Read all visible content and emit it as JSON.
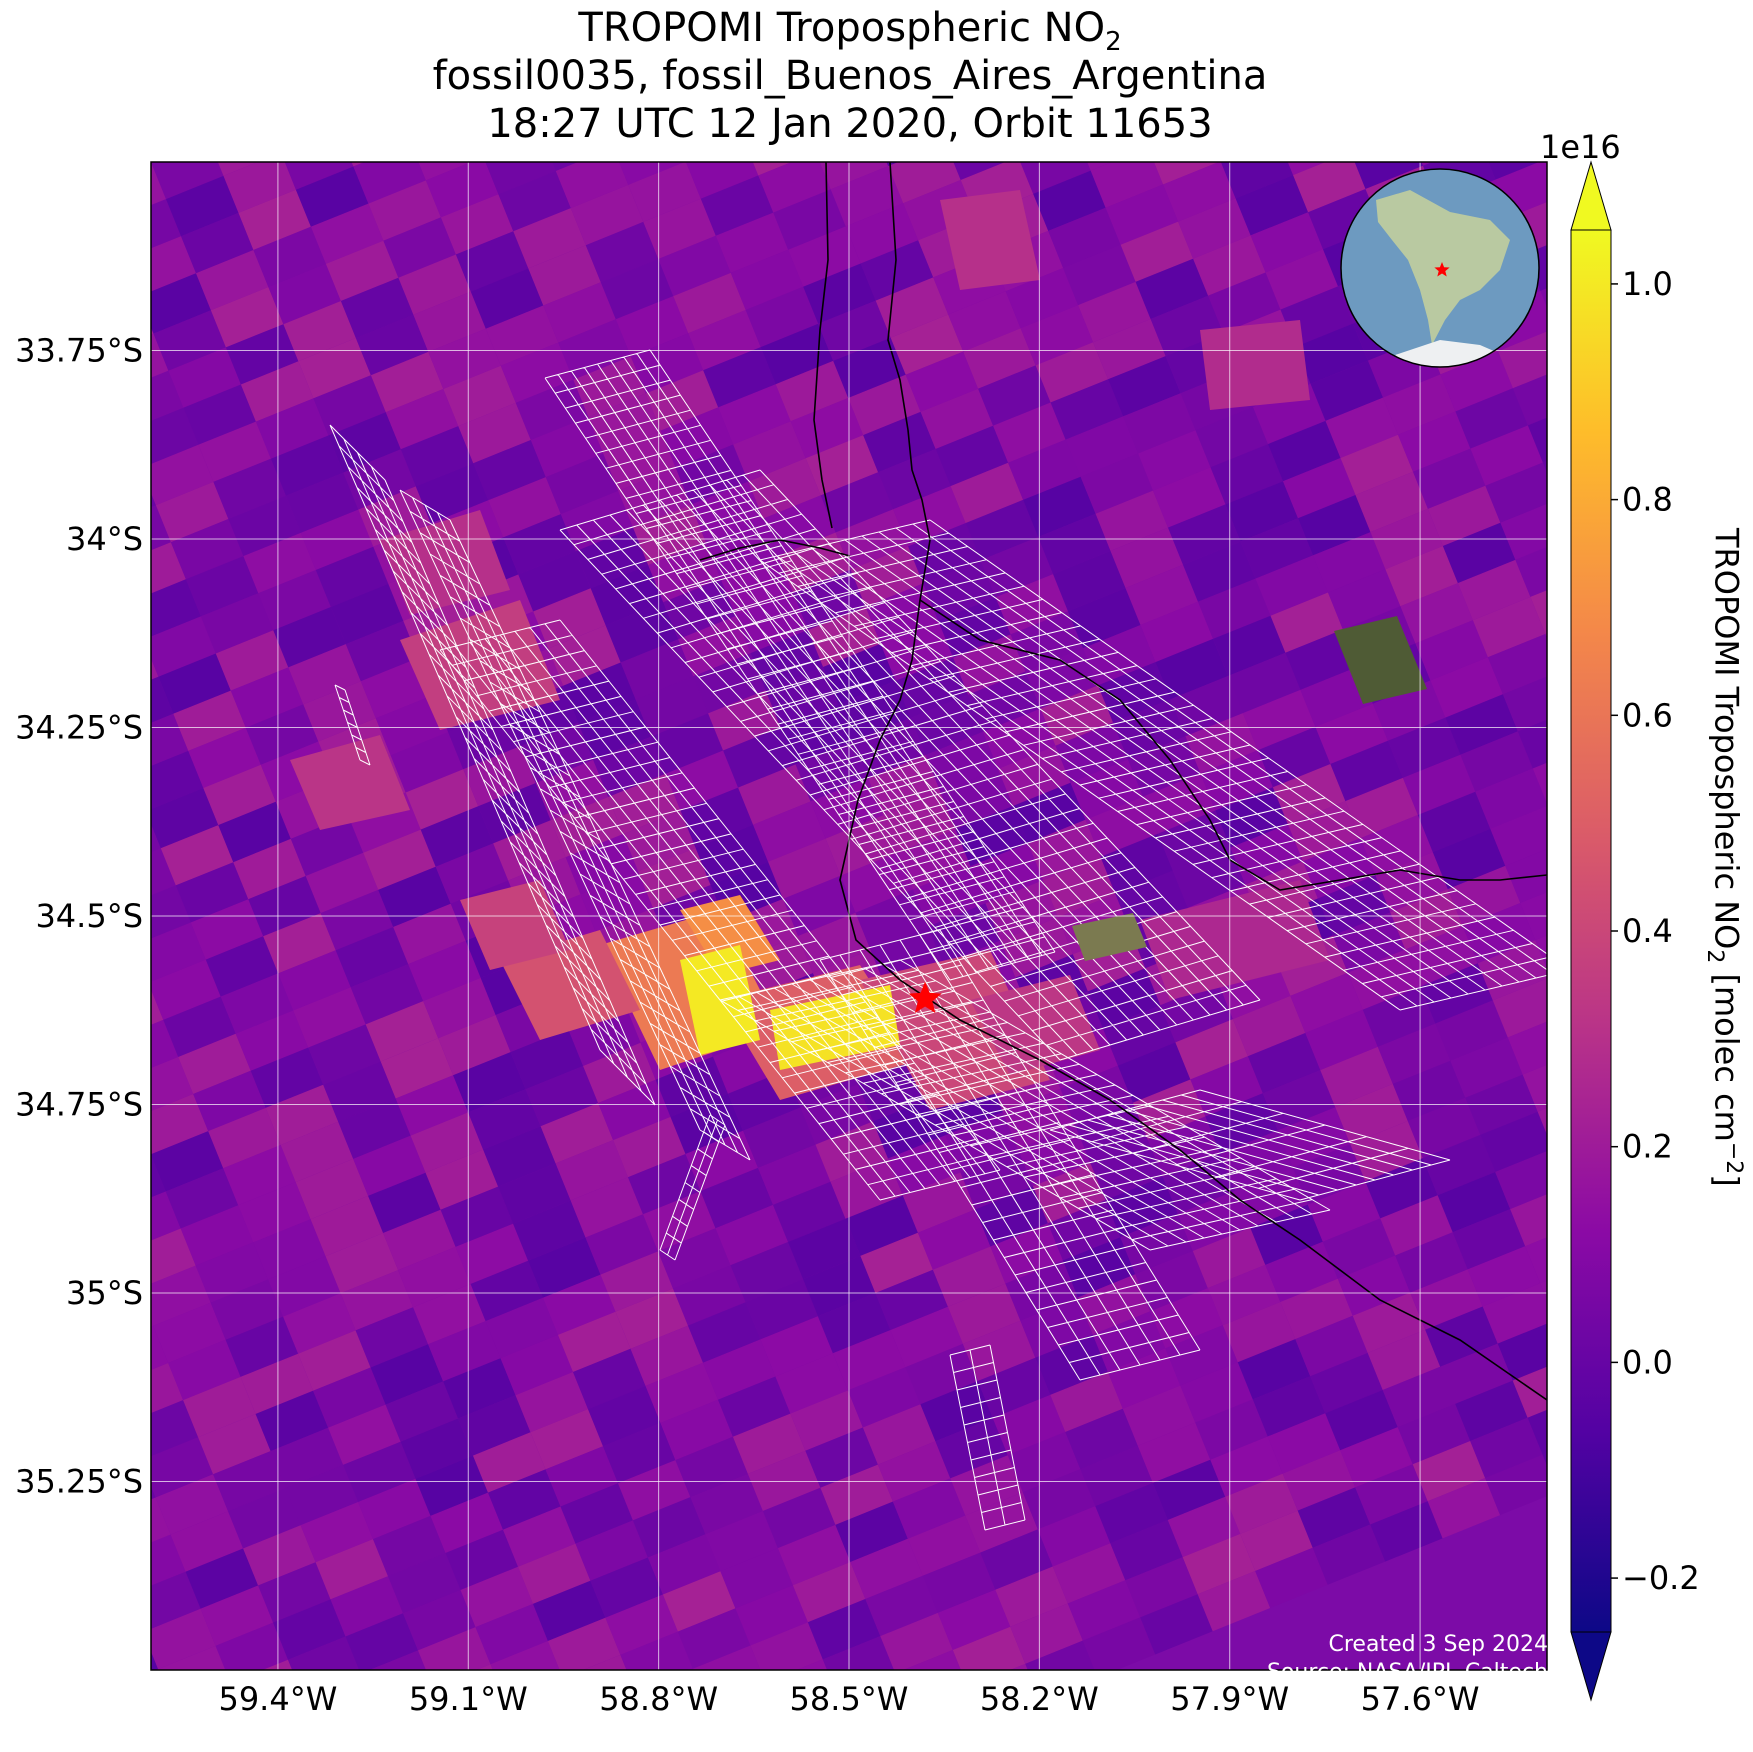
{
  "title": {
    "line1_main": "TROPOMI Tropospheric NO",
    "line1_sub": "2",
    "line2": "fossil0035, fossil_Buenos_Aires_Argentina",
    "line3": "18:27 UTC 12 Jan 2020, Orbit 11653"
  },
  "map": {
    "lat_ticks": [
      "33.75°S",
      "34°S",
      "34.25°S",
      "34.5°S",
      "34.75°S",
      "35°S",
      "35.25°S"
    ],
    "lon_ticks": [
      "59.4°W",
      "59.1°W",
      "58.8°W",
      "58.5°W",
      "58.2°W",
      "57.9°W",
      "57.6°W"
    ],
    "lon_range": [
      -59.6,
      -57.4
    ],
    "lat_range": [
      -35.5,
      -33.5
    ],
    "target_marker": {
      "symbol": "red-star",
      "lon": -58.38,
      "lat": -34.61
    },
    "inset": "globe-south-america-with-red-star",
    "credit_line1": "Created 3 Sep 2024",
    "credit_line2": "Source: NASA/JPL-Caltech"
  },
  "colorbar": {
    "label_main": "TROPOMI Tropospheric NO",
    "label_sub": "2",
    "label_unit_open": " [molec cm",
    "label_sup": "−2",
    "label_close": "]",
    "exponent": "1e16",
    "ticks": [
      "−0.2",
      "0.0",
      "0.2",
      "0.4",
      "0.6",
      "0.8",
      "1.0"
    ],
    "range": [
      -0.25,
      1.05
    ],
    "colormap": "plasma",
    "colors": [
      "#0d0887",
      "#5302a3",
      "#8b0aa5",
      "#b83289",
      "#db5c68",
      "#f48849",
      "#febd2a",
      "#f0f921"
    ]
  }
}
